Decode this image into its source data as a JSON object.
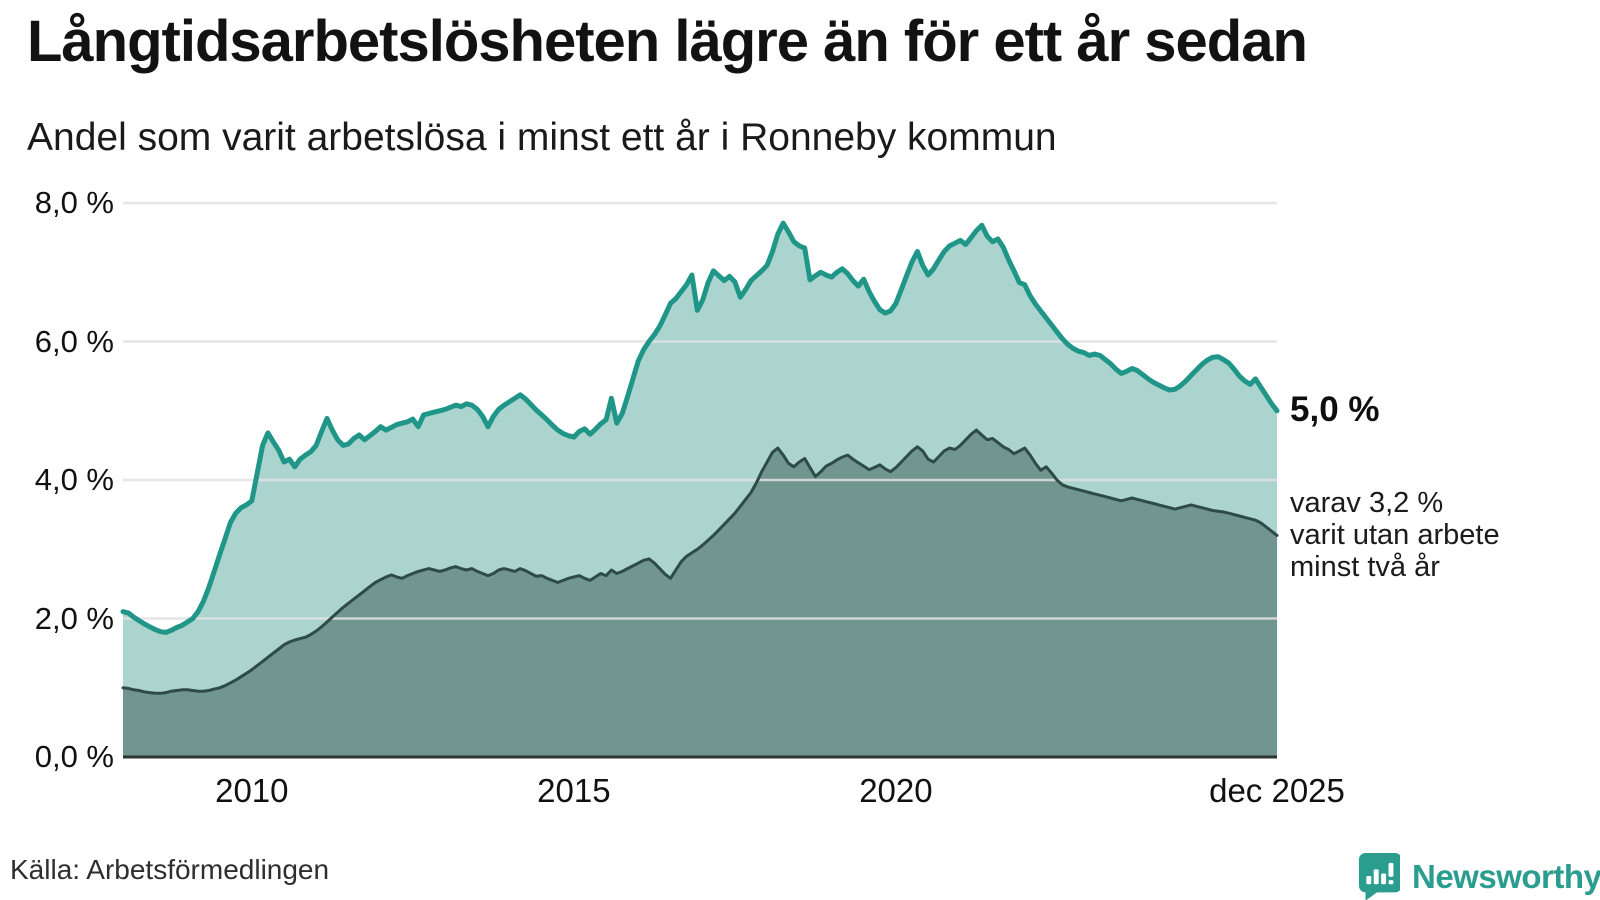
{
  "header": {
    "title": "Långtidsarbetslösheten lägre än för ett år sedan",
    "subtitle": "Andel som varit arbetslösa i minst ett år i Ronneby kommun"
  },
  "chart_data": {
    "type": "area",
    "title": "Långtidsarbetslösheten lägre än för ett år sedan",
    "subtitle": "Andel som varit arbetslösa i minst ett år i Ronneby kommun",
    "unit": "%",
    "x_start": "2008-01",
    "x_end": "2025-12",
    "frequency": "monthly",
    "ylim": [
      0,
      8
    ],
    "grid": true,
    "y_ticks": [
      {
        "value": 0,
        "label": "0,0 %"
      },
      {
        "value": 2,
        "label": "2,0 %"
      },
      {
        "value": 4,
        "label": "4,0 %"
      },
      {
        "value": 6,
        "label": "6,0 %"
      },
      {
        "value": 8,
        "label": "8,0 %"
      }
    ],
    "x_ticks": [
      {
        "month_index": 24,
        "label": "2010"
      },
      {
        "month_index": 84,
        "label": "2015"
      },
      {
        "month_index": 144,
        "label": "2020"
      },
      {
        "month_index": 215,
        "label": "dec 2025"
      }
    ],
    "series": [
      {
        "name": "Andel arbetslösa minst ett år",
        "color": "#209689",
        "fill": "#abd4ce",
        "end_value": 5.0,
        "end_value_label": "5,0 %",
        "values": [
          2.1,
          2.08,
          2.02,
          1.97,
          1.92,
          1.88,
          1.84,
          1.81,
          1.8,
          1.83,
          1.87,
          1.9,
          1.95,
          2.0,
          2.1,
          2.25,
          2.45,
          2.68,
          2.92,
          3.15,
          3.38,
          3.52,
          3.6,
          3.64,
          3.7,
          4.1,
          4.5,
          4.68,
          4.55,
          4.43,
          4.26,
          4.3,
          4.19,
          4.3,
          4.36,
          4.41,
          4.5,
          4.7,
          4.89,
          4.72,
          4.58,
          4.5,
          4.52,
          4.6,
          4.65,
          4.58,
          4.64,
          4.7,
          4.77,
          4.72,
          4.76,
          4.8,
          4.82,
          4.84,
          4.88,
          4.77,
          4.94,
          4.96,
          4.98,
          5.0,
          5.02,
          5.05,
          5.08,
          5.06,
          5.1,
          5.08,
          5.02,
          4.92,
          4.77,
          4.92,
          5.02,
          5.08,
          5.13,
          5.18,
          5.23,
          5.17,
          5.09,
          5.01,
          4.94,
          4.87,
          4.79,
          4.72,
          4.67,
          4.64,
          4.62,
          4.7,
          4.74,
          4.66,
          4.73,
          4.81,
          4.87,
          5.18,
          4.82,
          4.96,
          5.2,
          5.46,
          5.72,
          5.88,
          6.0,
          6.1,
          6.22,
          6.38,
          6.55,
          6.62,
          6.72,
          6.82,
          6.96,
          6.45,
          6.6,
          6.85,
          7.02,
          6.95,
          6.88,
          6.94,
          6.86,
          6.64,
          6.75,
          6.88,
          6.95,
          7.02,
          7.1,
          7.3,
          7.55,
          7.71,
          7.58,
          7.44,
          7.38,
          7.35,
          6.89,
          6.95,
          7.0,
          6.96,
          6.93,
          7.0,
          7.05,
          6.98,
          6.88,
          6.8,
          6.9,
          6.72,
          6.58,
          6.46,
          6.41,
          6.44,
          6.55,
          6.75,
          6.95,
          7.15,
          7.3,
          7.1,
          6.96,
          7.05,
          7.18,
          7.3,
          7.38,
          7.42,
          7.46,
          7.4,
          7.5,
          7.6,
          7.68,
          7.52,
          7.44,
          7.48,
          7.36,
          7.18,
          7.02,
          6.85,
          6.82,
          6.66,
          6.54,
          6.44,
          6.34,
          6.24,
          6.14,
          6.04,
          5.96,
          5.9,
          5.86,
          5.84,
          5.8,
          5.82,
          5.8,
          5.74,
          5.68,
          5.6,
          5.54,
          5.57,
          5.61,
          5.58,
          5.52,
          5.46,
          5.41,
          5.37,
          5.33,
          5.3,
          5.31,
          5.36,
          5.43,
          5.51,
          5.59,
          5.67,
          5.73,
          5.77,
          5.78,
          5.74,
          5.69,
          5.6,
          5.5,
          5.43,
          5.38,
          5.46,
          5.34,
          5.22,
          5.1,
          5.0
        ]
      },
      {
        "name": "Andel arbetslösa minst två år",
        "color": "#2f4b46",
        "fill": "#70968f",
        "end_value": 3.2,
        "end_value_label": "3,2 %",
        "values": [
          1.0,
          0.99,
          0.97,
          0.96,
          0.94,
          0.93,
          0.92,
          0.92,
          0.93,
          0.95,
          0.96,
          0.97,
          0.97,
          0.96,
          0.95,
          0.95,
          0.96,
          0.98,
          1.0,
          1.03,
          1.07,
          1.11,
          1.16,
          1.21,
          1.26,
          1.32,
          1.38,
          1.44,
          1.5,
          1.56,
          1.62,
          1.66,
          1.69,
          1.71,
          1.73,
          1.77,
          1.82,
          1.88,
          1.95,
          2.02,
          2.09,
          2.16,
          2.22,
          2.28,
          2.34,
          2.4,
          2.46,
          2.52,
          2.56,
          2.6,
          2.63,
          2.6,
          2.58,
          2.62,
          2.65,
          2.68,
          2.7,
          2.72,
          2.7,
          2.68,
          2.7,
          2.73,
          2.75,
          2.72,
          2.7,
          2.72,
          2.68,
          2.65,
          2.62,
          2.65,
          2.7,
          2.72,
          2.7,
          2.68,
          2.72,
          2.69,
          2.65,
          2.61,
          2.62,
          2.58,
          2.55,
          2.52,
          2.55,
          2.58,
          2.6,
          2.62,
          2.58,
          2.55,
          2.6,
          2.65,
          2.62,
          2.7,
          2.65,
          2.68,
          2.72,
          2.76,
          2.8,
          2.84,
          2.86,
          2.8,
          2.72,
          2.64,
          2.58,
          2.7,
          2.82,
          2.9,
          2.95,
          3.0,
          3.06,
          3.13,
          3.2,
          3.28,
          3.36,
          3.44,
          3.52,
          3.62,
          3.72,
          3.82,
          3.96,
          4.12,
          4.26,
          4.4,
          4.46,
          4.36,
          4.24,
          4.19,
          4.26,
          4.31,
          4.18,
          4.05,
          4.12,
          4.2,
          4.24,
          4.29,
          4.33,
          4.36,
          4.3,
          4.25,
          4.2,
          4.15,
          4.18,
          4.22,
          4.16,
          4.12,
          4.18,
          4.26,
          4.34,
          4.42,
          4.48,
          4.42,
          4.3,
          4.26,
          4.34,
          4.42,
          4.46,
          4.44,
          4.5,
          4.58,
          4.66,
          4.72,
          4.65,
          4.58,
          4.6,
          4.54,
          4.48,
          4.44,
          4.38,
          4.42,
          4.46,
          4.36,
          4.24,
          4.14,
          4.19,
          4.1,
          4.0,
          3.93,
          3.9,
          3.88,
          3.86,
          3.84,
          3.82,
          3.8,
          3.78,
          3.76,
          3.74,
          3.72,
          3.7,
          3.72,
          3.74,
          3.72,
          3.7,
          3.68,
          3.66,
          3.64,
          3.62,
          3.6,
          3.58,
          3.6,
          3.62,
          3.64,
          3.62,
          3.6,
          3.58,
          3.56,
          3.55,
          3.54,
          3.52,
          3.5,
          3.48,
          3.46,
          3.44,
          3.42,
          3.38,
          3.32,
          3.26,
          3.2
        ]
      }
    ],
    "annotations": {
      "primary": "5,0 %",
      "secondary_lines": [
        "varav 3,2 %",
        "varit utan arbete",
        "minst två år"
      ]
    },
    "legend_position": "none"
  },
  "footer": {
    "source": "Källa: Arbetsförmedlingen",
    "brand": "Newsworthy"
  },
  "colors": {
    "series1_line": "#209689",
    "series1_fill": "#abd4ce",
    "series2_line": "#2f4b46",
    "series2_fill": "#70968f",
    "gridline": "#e2e2e2",
    "axis_line": "#2e3432",
    "brand_teal": "#2b9d8e"
  }
}
